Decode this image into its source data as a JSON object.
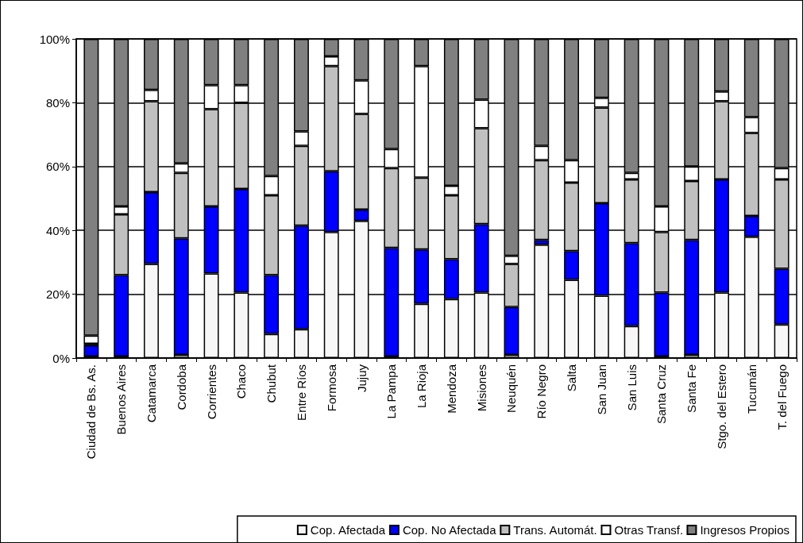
{
  "chart_data": {
    "type": "bar",
    "stacked": true,
    "categories": [
      "Ciudad de Bs. As.",
      "Buenos Aires",
      "Catamarca",
      "Cordoba",
      "Corrientes",
      "Chaco",
      "Chubut",
      "Entre Ríos",
      "Formosa",
      "Jujuy",
      "La Pampa",
      "La Rioja",
      "Mendoza",
      "Misiones",
      "Neuquén",
      "Río Negro",
      "Salta",
      "San Juan",
      "San Luis",
      "Santa Cruz",
      "Santa Fe",
      "Stgo. del Estero",
      "Tucumán",
      "T. del Fuego"
    ],
    "series": [
      {
        "name": "Cop. Afectada",
        "color": "#f7f7f7",
        "values": [
          0.5,
          0.5,
          29.5,
          1,
          26.5,
          20.5,
          7.5,
          9,
          39.5,
          43,
          0.5,
          17,
          18.5,
          20.5,
          1,
          35.5,
          24.5,
          19.5,
          10,
          0.5,
          1,
          20.5,
          38,
          10.5
        ]
      },
      {
        "name": "Cop. No Afectada",
        "color": "#0000ff",
        "values": [
          3.5,
          25.5,
          22.5,
          36.5,
          21,
          32.5,
          18.5,
          32.5,
          19,
          3.5,
          34,
          17,
          12.5,
          21.5,
          15,
          1.5,
          9,
          29,
          26,
          20,
          36,
          35.5,
          6.5,
          17.5
        ]
      },
      {
        "name": "Trans. Automát.",
        "color": "#c0c0c0",
        "values": [
          0.5,
          19,
          28.5,
          20.5,
          30.5,
          27,
          25,
          25,
          33,
          30,
          25,
          22.5,
          20,
          30,
          13.5,
          25,
          21.5,
          30,
          20,
          19,
          18.5,
          24.5,
          26,
          28
        ]
      },
      {
        "name": "Otras Transf.",
        "color": "#ffffff",
        "values": [
          2.5,
          2.5,
          3.5,
          3,
          7.5,
          5.5,
          6,
          4.5,
          3,
          10.5,
          6,
          35,
          3,
          9,
          2.5,
          4.5,
          7,
          3,
          2,
          8,
          4.5,
          3,
          5,
          3.5
        ]
      },
      {
        "name": "Ingresos Propios",
        "color": "#808080",
        "values": [
          93,
          52.5,
          16,
          39,
          14.5,
          14.5,
          43,
          29,
          5.5,
          13,
          34.5,
          8.5,
          46,
          19,
          68,
          33.5,
          38,
          18.5,
          42,
          52.5,
          40,
          16.5,
          24.5,
          40.5
        ]
      }
    ],
    "ylim": [
      0,
      100
    ],
    "yticks": [
      {
        "value": 0,
        "label": "0%"
      },
      {
        "value": 20,
        "label": "20%"
      },
      {
        "value": 40,
        "label": "40%"
      },
      {
        "value": 60,
        "label": "60%"
      },
      {
        "value": 80,
        "label": "80%"
      },
      {
        "value": 100,
        "label": "100%"
      }
    ],
    "grid": "y",
    "legend": "bottom"
  }
}
